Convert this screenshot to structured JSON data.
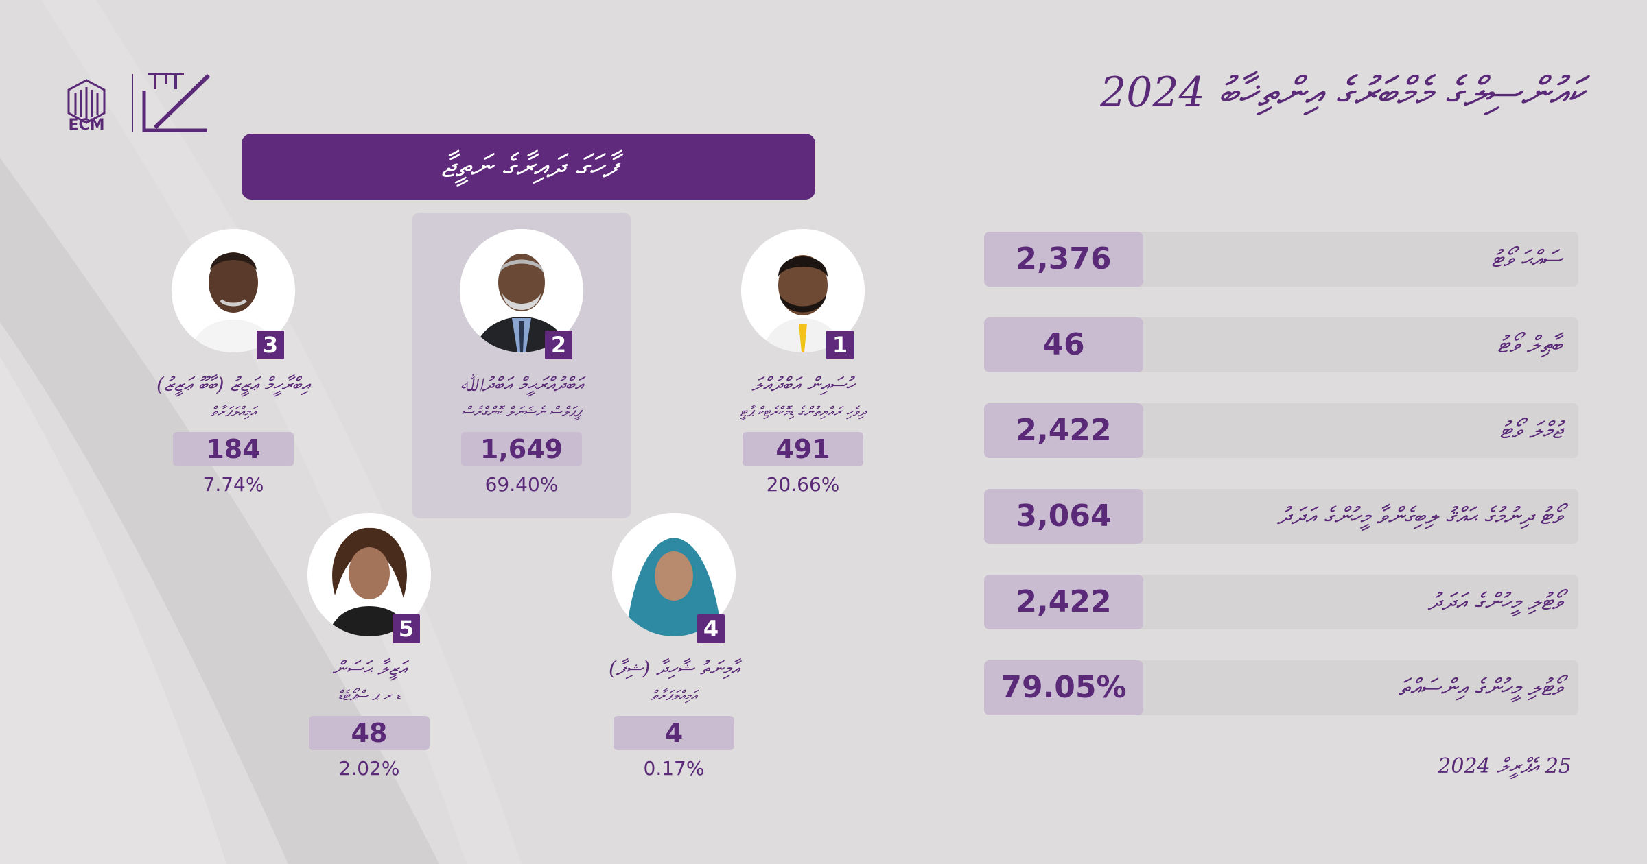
{
  "header": {
    "logo_text": "ECM",
    "title": "ކައުންސިލްގެ މެމްބަރުގެ އިންތިޚާބު 2024"
  },
  "banner": {
    "text": "ފާހަގަ ދައިރާގެ ނަތީޖާ"
  },
  "candidates": [
    {
      "number": "1",
      "name": "ހުސައިން އަބްދުއްލަ",
      "party": "ދިވެހި ރައްޔިތުންގެ ޑިމޮކްރެޓިކް ޕާޓީ",
      "votes": "491",
      "percent": "20.66%"
    },
    {
      "number": "2",
      "name": "އަބްދުއްރަޙީމް އަބްދުﷲ",
      "party": "ޕީޕަލްސް ނެޝަނަލް ކޮންގްރެސް",
      "votes": "1,649",
      "percent": "69.40%"
    },
    {
      "number": "3",
      "name": "އިބްރާހީމް ޢަޒީޒު (ބާބޫ ޢަޒީޒު)",
      "party": "އަމިއްލަފަރާތް",
      "votes": "184",
      "percent": "7.74%"
    },
    {
      "number": "4",
      "name": "އާމިނަތު ޝާހިދާ (ޝިފާ)",
      "party": "އަމިއްލަފަރާތް",
      "votes": "4",
      "percent": "0.17%"
    },
    {
      "number": "5",
      "name": "އަޒީލާ ޙަސަން",
      "party": "ޑ ރ ޕ ސްޕޯޓެޑް",
      "votes": "48",
      "percent": "2.02%"
    }
  ],
  "stats": [
    {
      "label": "ސައްޙަ ވޯޓު",
      "value": "2,376"
    },
    {
      "label": "ބާޠިލް ވޯޓު",
      "value": "46"
    },
    {
      "label": "ޖުމްލަ ވޯޓު",
      "value": "2,422"
    },
    {
      "label": "ވޯޓު ދިނުމުގެ ޙައްޤު ލިބިގެންވާ މީހުންގެ އަދަދު",
      "value": "3,064"
    },
    {
      "label": "ވޯޓުލި މީހުންގެ އަދަދު",
      "value": "2,422"
    },
    {
      "label": "ވޯޓުލި މީހުންގެ އިންސައްތަ",
      "value": "79.05%"
    }
  ],
  "date": "25 އެޕްރީލް 2024",
  "colors": {
    "accent": "#5f2a7c",
    "background": "#dedcdd",
    "pill": "#c9bcd0"
  }
}
